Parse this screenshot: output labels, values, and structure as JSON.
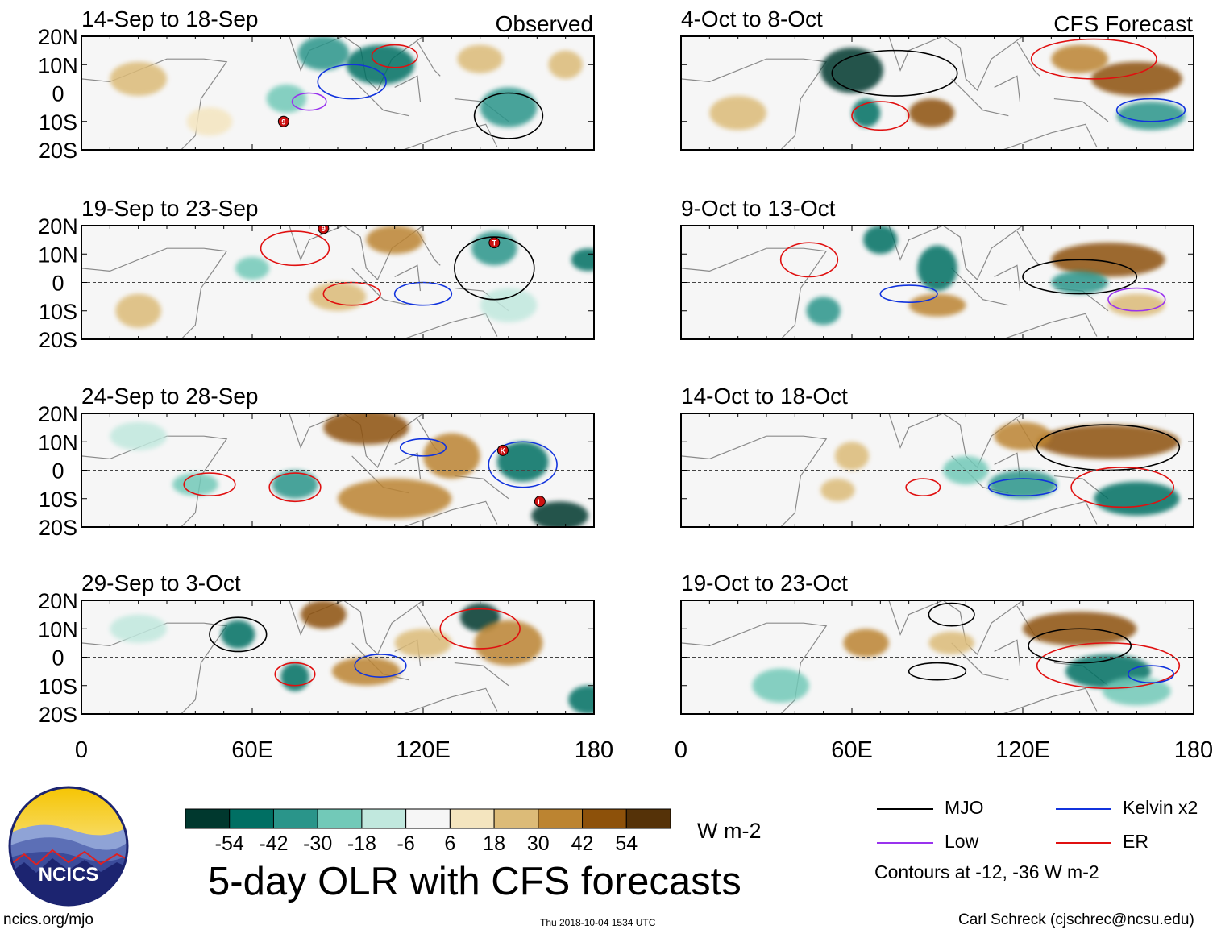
{
  "figure": {
    "title": "5-day OLR with CFS forecasts",
    "left_column_label": "Observed",
    "right_column_label": "CFS Forecast",
    "units": "W m-2",
    "contours_note": "Contours at -12, -36 W m-2",
    "footer_left": "ncics.org/mjo",
    "footer_center": "Thu 2018-10-04 1534 UTC",
    "footer_right": "Carl Schreck (cjschrec@ncsu.edu)",
    "logo_text": "NCICS"
  },
  "legend": [
    {
      "label": "MJO",
      "color": "#000000"
    },
    {
      "label": "Kelvin x2",
      "color": "#1133dd"
    },
    {
      "label": "Low",
      "color": "#9933ee"
    },
    {
      "label": "ER",
      "color": "#e01010"
    }
  ],
  "colorbar": {
    "ticks": [
      "-54",
      "-42",
      "-30",
      "-18",
      "-6",
      "6",
      "18",
      "30",
      "42",
      "54"
    ],
    "colors": [
      "#00382e",
      "#006f63",
      "#2a958a",
      "#72c9b8",
      "#c1e8de",
      "#f6f6f6",
      "#f4e5bf",
      "#dcbb78",
      "#bc8431",
      "#8d510a",
      "#553208"
    ]
  },
  "chart_data": {
    "type": "heatmap",
    "variable": "5-day OLR anomaly with CFS forecast contours",
    "x_range": [
      0,
      180
    ],
    "y_range": [
      -20,
      20
    ],
    "x_ticks": [
      "0",
      "60E",
      "120E",
      "180"
    ],
    "y_ticks": [
      "20N",
      "10N",
      "0",
      "10S",
      "20S"
    ],
    "panels": [
      {
        "label": "14-Sep to 18-Sep",
        "source": "Observed"
      },
      {
        "label": "19-Sep to 23-Sep",
        "source": "Observed"
      },
      {
        "label": "24-Sep to 28-Sep",
        "source": "Observed"
      },
      {
        "label": "29-Sep to 3-Oct",
        "source": "Observed"
      },
      {
        "label": "4-Oct to 8-Oct",
        "source": "CFS Forecast"
      },
      {
        "label": "9-Oct to 13-Oct",
        "source": "CFS Forecast"
      },
      {
        "label": "14-Oct to 18-Oct",
        "source": "CFS Forecast"
      },
      {
        "label": "19-Oct to 23-Oct",
        "source": "CFS Forecast"
      }
    ],
    "storm_markers": [
      {
        "panel": 0,
        "label": "9",
        "lon": 71,
        "lat": -10
      },
      {
        "panel": 1,
        "label": "9",
        "lon": 85,
        "lat": 19
      },
      {
        "panel": 1,
        "label": "T",
        "lon": 145,
        "lat": 14
      },
      {
        "panel": 2,
        "label": "K",
        "lon": 148,
        "lat": 7
      },
      {
        "panel": 2,
        "label": "L",
        "lon": 161,
        "lat": -11
      }
    ],
    "features": [
      {
        "panel": 0,
        "lon": 85,
        "lat": 14,
        "rx": 9,
        "ry": 6,
        "color": 2
      },
      {
        "panel": 0,
        "lon": 105,
        "lat": 10,
        "rx": 12,
        "ry": 7,
        "color": 1
      },
      {
        "panel": 0,
        "lon": 72,
        "lat": -2,
        "rx": 7,
        "ry": 5,
        "color": 3
      },
      {
        "panel": 0,
        "lon": 150,
        "lat": -5,
        "rx": 10,
        "ry": 7,
        "color": 2
      },
      {
        "panel": 0,
        "lon": 140,
        "lat": 12,
        "rx": 8,
        "ry": 5,
        "color": 7
      },
      {
        "panel": 0,
        "lon": 20,
        "lat": 5,
        "rx": 10,
        "ry": 6,
        "color": 7
      },
      {
        "panel": 0,
        "lon": 45,
        "lat": -10,
        "rx": 8,
        "ry": 5,
        "color": 6
      },
      {
        "panel": 0,
        "lon": 170,
        "lat": 10,
        "rx": 6,
        "ry": 5,
        "color": 7
      },
      {
        "panel": 1,
        "lon": 110,
        "lat": 15,
        "rx": 10,
        "ry": 5,
        "color": 8
      },
      {
        "panel": 1,
        "lon": 60,
        "lat": 5,
        "rx": 6,
        "ry": 4,
        "color": 3
      },
      {
        "panel": 1,
        "lon": 145,
        "lat": 12,
        "rx": 8,
        "ry": 6,
        "color": 2
      },
      {
        "panel": 1,
        "lon": 178,
        "lat": 8,
        "rx": 6,
        "ry": 4,
        "color": 1
      },
      {
        "panel": 1,
        "lon": 90,
        "lat": -5,
        "rx": 10,
        "ry": 5,
        "color": 7
      },
      {
        "panel": 1,
        "lon": 20,
        "lat": -10,
        "rx": 8,
        "ry": 6,
        "color": 7
      },
      {
        "panel": 1,
        "lon": 150,
        "lat": -8,
        "rx": 10,
        "ry": 6,
        "color": 4
      },
      {
        "panel": 2,
        "lon": 100,
        "lat": 15,
        "rx": 15,
        "ry": 6,
        "color": 9
      },
      {
        "panel": 2,
        "lon": 130,
        "lat": 5,
        "rx": 10,
        "ry": 8,
        "color": 8
      },
      {
        "panel": 2,
        "lon": 110,
        "lat": -10,
        "rx": 20,
        "ry": 7,
        "color": 8
      },
      {
        "panel": 2,
        "lon": 75,
        "lat": -5,
        "rx": 8,
        "ry": 5,
        "color": 2
      },
      {
        "panel": 2,
        "lon": 155,
        "lat": 3,
        "rx": 9,
        "ry": 7,
        "color": 1
      },
      {
        "panel": 2,
        "lon": 168,
        "lat": -16,
        "rx": 10,
        "ry": 5,
        "color": 0
      },
      {
        "panel": 2,
        "lon": 40,
        "lat": -5,
        "rx": 8,
        "ry": 4,
        "color": 3
      },
      {
        "panel": 2,
        "lon": 20,
        "lat": 12,
        "rx": 10,
        "ry": 5,
        "color": 4
      },
      {
        "panel": 3,
        "lon": 85,
        "lat": 15,
        "rx": 8,
        "ry": 5,
        "color": 9
      },
      {
        "panel": 3,
        "lon": 55,
        "lat": 8,
        "rx": 6,
        "ry": 5,
        "color": 1
      },
      {
        "panel": 3,
        "lon": 75,
        "lat": -7,
        "rx": 5,
        "ry": 5,
        "color": 1
      },
      {
        "panel": 3,
        "lon": 140,
        "lat": 14,
        "rx": 7,
        "ry": 5,
        "color": 0
      },
      {
        "panel": 3,
        "lon": 150,
        "lat": 5,
        "rx": 12,
        "ry": 8,
        "color": 8
      },
      {
        "panel": 3,
        "lon": 120,
        "lat": 5,
        "rx": 10,
        "ry": 5,
        "color": 7
      },
      {
        "panel": 3,
        "lon": 100,
        "lat": -5,
        "rx": 12,
        "ry": 5,
        "color": 8
      },
      {
        "panel": 3,
        "lon": 178,
        "lat": -15,
        "rx": 7,
        "ry": 5,
        "color": 1
      },
      {
        "panel": 3,
        "lon": 20,
        "lat": 10,
        "rx": 10,
        "ry": 5,
        "color": 4
      },
      {
        "panel": 4,
        "lon": 60,
        "lat": 8,
        "rx": 11,
        "ry": 8,
        "color": 0
      },
      {
        "panel": 4,
        "lon": 65,
        "lat": -7,
        "rx": 5,
        "ry": 5,
        "color": 1
      },
      {
        "panel": 4,
        "lon": 88,
        "lat": -7,
        "rx": 8,
        "ry": 5,
        "color": 9
      },
      {
        "panel": 4,
        "lon": 160,
        "lat": 5,
        "rx": 16,
        "ry": 6,
        "color": 9
      },
      {
        "panel": 4,
        "lon": 140,
        "lat": 12,
        "rx": 10,
        "ry": 5,
        "color": 8
      },
      {
        "panel": 4,
        "lon": 165,
        "lat": -8,
        "rx": 12,
        "ry": 5,
        "color": 2
      },
      {
        "panel": 4,
        "lon": 20,
        "lat": -7,
        "rx": 10,
        "ry": 6,
        "color": 7
      },
      {
        "panel": 5,
        "lon": 150,
        "lat": 8,
        "rx": 20,
        "ry": 6,
        "color": 9
      },
      {
        "panel": 5,
        "lon": 70,
        "lat": 15,
        "rx": 6,
        "ry": 5,
        "color": 1
      },
      {
        "panel": 5,
        "lon": 90,
        "lat": 5,
        "rx": 7,
        "ry": 8,
        "color": 1
      },
      {
        "panel": 5,
        "lon": 140,
        "lat": 0,
        "rx": 10,
        "ry": 4,
        "color": 2
      },
      {
        "panel": 5,
        "lon": 90,
        "lat": -8,
        "rx": 10,
        "ry": 4,
        "color": 8
      },
      {
        "panel": 5,
        "lon": 50,
        "lat": -10,
        "rx": 6,
        "ry": 5,
        "color": 2
      },
      {
        "panel": 5,
        "lon": 160,
        "lat": -8,
        "rx": 10,
        "ry": 4,
        "color": 7
      },
      {
        "panel": 6,
        "lon": 150,
        "lat": 10,
        "rx": 25,
        "ry": 6,
        "color": 9
      },
      {
        "panel": 6,
        "lon": 120,
        "lat": 12,
        "rx": 10,
        "ry": 5,
        "color": 8
      },
      {
        "panel": 6,
        "lon": 120,
        "lat": -5,
        "rx": 12,
        "ry": 5,
        "color": 2
      },
      {
        "panel": 6,
        "lon": 160,
        "lat": -10,
        "rx": 15,
        "ry": 6,
        "color": 1
      },
      {
        "panel": 6,
        "lon": 60,
        "lat": 5,
        "rx": 6,
        "ry": 5,
        "color": 7
      },
      {
        "panel": 6,
        "lon": 100,
        "lat": 0,
        "rx": 8,
        "ry": 5,
        "color": 3
      },
      {
        "panel": 6,
        "lon": 55,
        "lat": -7,
        "rx": 6,
        "ry": 4,
        "color": 7
      },
      {
        "panel": 7,
        "lon": 140,
        "lat": 10,
        "rx": 20,
        "ry": 6,
        "color": 9
      },
      {
        "panel": 7,
        "lon": 65,
        "lat": 5,
        "rx": 8,
        "ry": 5,
        "color": 8
      },
      {
        "panel": 7,
        "lon": 150,
        "lat": -5,
        "rx": 15,
        "ry": 6,
        "color": 1
      },
      {
        "panel": 7,
        "lon": 160,
        "lat": -12,
        "rx": 12,
        "ry": 5,
        "color": 3
      },
      {
        "panel": 7,
        "lon": 35,
        "lat": -10,
        "rx": 10,
        "ry": 6,
        "color": 3
      },
      {
        "panel": 7,
        "lon": 95,
        "lat": 5,
        "rx": 8,
        "ry": 4,
        "color": 7
      }
    ],
    "contours": [
      {
        "panel": 0,
        "lon": 95,
        "lat": 4,
        "rx": 12,
        "ry": 6,
        "color": "#1133dd"
      },
      {
        "panel": 0,
        "lon": 110,
        "lat": 13,
        "rx": 8,
        "ry": 4,
        "color": "#e01010"
      },
      {
        "panel": 0,
        "lon": 150,
        "lat": -8,
        "rx": 12,
        "ry": 8,
        "color": "#000000"
      },
      {
        "panel": 0,
        "lon": 80,
        "lat": -3,
        "rx": 6,
        "ry": 3,
        "color": "#9933ee"
      },
      {
        "panel": 1,
        "lon": 145,
        "lat": 5,
        "rx": 14,
        "ry": 11,
        "color": "#000000"
      },
      {
        "panel": 1,
        "lon": 120,
        "lat": -4,
        "rx": 10,
        "ry": 4,
        "color": "#1133dd"
      },
      {
        "panel": 1,
        "lon": 95,
        "lat": -4,
        "rx": 10,
        "ry": 4,
        "color": "#e01010"
      },
      {
        "panel": 1,
        "lon": 75,
        "lat": 12,
        "rx": 12,
        "ry": 6,
        "color": "#e01010"
      },
      {
        "panel": 2,
        "lon": 155,
        "lat": 2,
        "rx": 12,
        "ry": 8,
        "color": "#1133dd"
      },
      {
        "panel": 2,
        "lon": 75,
        "lat": -6,
        "rx": 9,
        "ry": 5,
        "color": "#e01010"
      },
      {
        "panel": 2,
        "lon": 45,
        "lat": -5,
        "rx": 9,
        "ry": 4,
        "color": "#e01010"
      },
      {
        "panel": 2,
        "lon": 120,
        "lat": 8,
        "rx": 8,
        "ry": 3,
        "color": "#1133dd"
      },
      {
        "panel": 3,
        "lon": 55,
        "lat": 8,
        "rx": 10,
        "ry": 6,
        "color": "#000000"
      },
      {
        "panel": 3,
        "lon": 140,
        "lat": 10,
        "rx": 14,
        "ry": 7,
        "color": "#e01010"
      },
      {
        "panel": 3,
        "lon": 105,
        "lat": -3,
        "rx": 9,
        "ry": 4,
        "color": "#1133dd"
      },
      {
        "panel": 3,
        "lon": 75,
        "lat": -6,
        "rx": 7,
        "ry": 4,
        "color": "#e01010"
      },
      {
        "panel": 4,
        "lon": 75,
        "lat": 7,
        "rx": 22,
        "ry": 8,
        "color": "#000000"
      },
      {
        "panel": 4,
        "lon": 145,
        "lat": 12,
        "rx": 22,
        "ry": 7,
        "color": "#e01010"
      },
      {
        "panel": 4,
        "lon": 70,
        "lat": -8,
        "rx": 10,
        "ry": 5,
        "color": "#e01010"
      },
      {
        "panel": 4,
        "lon": 165,
        "lat": -6,
        "rx": 12,
        "ry": 4,
        "color": "#1133dd"
      },
      {
        "panel": 5,
        "lon": 140,
        "lat": 2,
        "rx": 20,
        "ry": 6,
        "color": "#000000"
      },
      {
        "panel": 5,
        "lon": 45,
        "lat": 8,
        "rx": 10,
        "ry": 6,
        "color": "#e01010"
      },
      {
        "panel": 5,
        "lon": 80,
        "lat": -4,
        "rx": 10,
        "ry": 3,
        "color": "#1133dd"
      },
      {
        "panel": 5,
        "lon": 160,
        "lat": -6,
        "rx": 10,
        "ry": 4,
        "color": "#9933ee"
      },
      {
        "panel": 6,
        "lon": 150,
        "lat": 8,
        "rx": 25,
        "ry": 8,
        "color": "#000000"
      },
      {
        "panel": 6,
        "lon": 155,
        "lat": -6,
        "rx": 18,
        "ry": 7,
        "color": "#e01010"
      },
      {
        "panel": 6,
        "lon": 120,
        "lat": -6,
        "rx": 12,
        "ry": 3,
        "color": "#1133dd"
      },
      {
        "panel": 6,
        "lon": 85,
        "lat": -6,
        "rx": 6,
        "ry": 3,
        "color": "#e01010"
      },
      {
        "panel": 7,
        "lon": 150,
        "lat": -3,
        "rx": 25,
        "ry": 8,
        "color": "#e01010"
      },
      {
        "panel": 7,
        "lon": 140,
        "lat": 4,
        "rx": 18,
        "ry": 6,
        "color": "#000000"
      },
      {
        "panel": 7,
        "lon": 95,
        "lat": 15,
        "rx": 8,
        "ry": 4,
        "color": "#000000"
      },
      {
        "panel": 7,
        "lon": 90,
        "lat": -5,
        "rx": 10,
        "ry": 3,
        "color": "#000000"
      },
      {
        "panel": 7,
        "lon": 165,
        "lat": -6,
        "rx": 8,
        "ry": 3,
        "color": "#1133dd"
      }
    ],
    "legend_position": "bottom-right"
  }
}
